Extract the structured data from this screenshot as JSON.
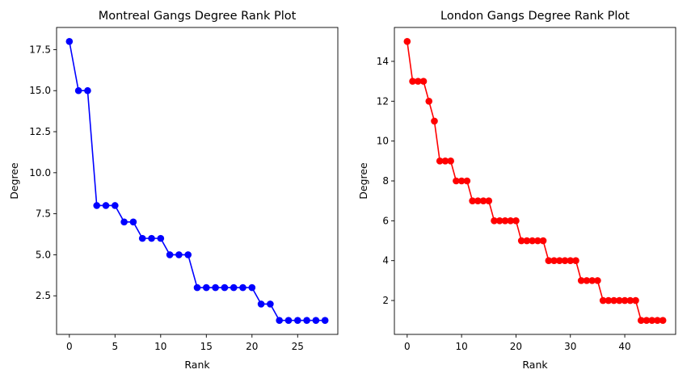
{
  "chart_data": [
    {
      "type": "line",
      "title": "Montreal Gangs Degree Rank Plot",
      "xlabel": "Rank",
      "ylabel": "Degree",
      "color": "#0000ff",
      "marker": "circle",
      "grid": false,
      "xlim": [
        -1.4,
        29.4
      ],
      "ylim": [
        0.15,
        18.85
      ],
      "xticks": [
        0,
        5,
        10,
        15,
        20,
        25
      ],
      "yticks": [
        2.5,
        5.0,
        7.5,
        10.0,
        12.5,
        15.0,
        17.5
      ],
      "xtick_labels": [
        "0",
        "5",
        "10",
        "15",
        "20",
        "25"
      ],
      "ytick_labels": [
        "2.5",
        "5.0",
        "7.5",
        "10.0",
        "12.5",
        "15.0",
        "17.5"
      ],
      "x": [
        0,
        1,
        2,
        3,
        4,
        5,
        6,
        7,
        8,
        9,
        10,
        11,
        12,
        13,
        14,
        15,
        16,
        17,
        18,
        19,
        20,
        21,
        22,
        23,
        24,
        25,
        26,
        27,
        28
      ],
      "y": [
        18,
        15,
        15,
        8,
        8,
        8,
        7,
        7,
        6,
        6,
        6,
        5,
        5,
        5,
        3,
        3,
        3,
        3,
        3,
        3,
        3,
        2,
        2,
        1,
        1,
        1,
        1,
        1,
        1
      ]
    },
    {
      "type": "line",
      "title": "London Gangs Degree Rank Plot",
      "xlabel": "Rank",
      "ylabel": "Degree",
      "color": "#ff0000",
      "marker": "circle",
      "grid": false,
      "xlim": [
        -2.35,
        49.35
      ],
      "ylim": [
        0.3,
        15.7
      ],
      "xticks": [
        0,
        10,
        20,
        30,
        40
      ],
      "yticks": [
        2,
        4,
        6,
        8,
        10,
        12,
        14
      ],
      "xtick_labels": [
        "0",
        "10",
        "20",
        "30",
        "40"
      ],
      "ytick_labels": [
        "2",
        "4",
        "6",
        "8",
        "10",
        "12",
        "14"
      ],
      "x": [
        0,
        1,
        2,
        3,
        4,
        5,
        6,
        7,
        8,
        9,
        10,
        11,
        12,
        13,
        14,
        15,
        16,
        17,
        18,
        19,
        20,
        21,
        22,
        23,
        24,
        25,
        26,
        27,
        28,
        29,
        30,
        31,
        32,
        33,
        34,
        35,
        36,
        37,
        38,
        39,
        40,
        41,
        42,
        43,
        44,
        45,
        46,
        47
      ],
      "y": [
        15,
        13,
        13,
        13,
        12,
        11,
        9,
        9,
        9,
        8,
        8,
        8,
        7,
        7,
        7,
        7,
        6,
        6,
        6,
        6,
        6,
        5,
        5,
        5,
        5,
        5,
        4,
        4,
        4,
        4,
        4,
        4,
        3,
        3,
        3,
        3,
        2,
        2,
        2,
        2,
        2,
        2,
        2,
        1,
        1,
        1,
        1,
        1
      ]
    }
  ]
}
